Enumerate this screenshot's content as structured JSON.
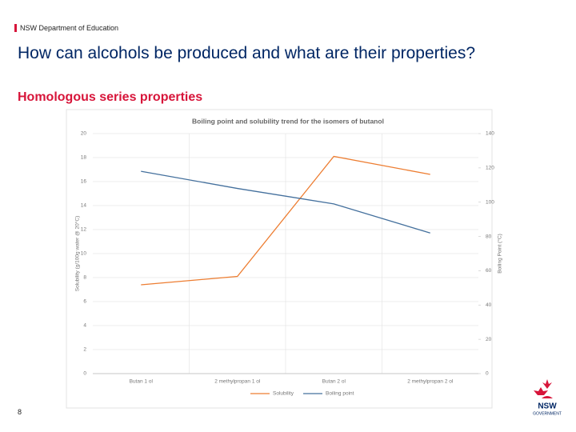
{
  "header": {
    "org": "NSW Department of Education",
    "title": "How can alcohols be produced and what are their properties?",
    "subtitle": "Homologous series properties"
  },
  "page_number": 8,
  "logo": {
    "name": "NSW",
    "sub": "GOVERNMENT"
  },
  "chart_data": {
    "type": "line",
    "title": "Boiling point and solubility trend for the isomers of butanol",
    "categories": [
      "Butan 1 ol",
      "2 methylpropan 1 ol",
      "Butan 2 ol",
      "2 methylpropan 2 ol"
    ],
    "y_label": "Solubility (g/100g water @ 20°C)",
    "y2_label": "Boiling Point (°C)",
    "series": [
      {
        "name": "Solubility",
        "color": "#ed7d31",
        "values": [
          7.4,
          8.1,
          18.1,
          16.6
        ]
      },
      {
        "name": "Boiling point",
        "color": "#44709d",
        "axis": "y2",
        "values": [
          118,
          108,
          99,
          82
        ]
      }
    ],
    "ylim": [
      0,
      20
    ],
    "yticks": [
      0,
      2,
      4,
      6,
      8,
      10,
      12,
      14,
      16,
      18,
      20
    ],
    "y2lim": [
      0,
      140
    ],
    "y2ticks": [
      0,
      20,
      40,
      60,
      80,
      100,
      120,
      140
    ],
    "grid": true,
    "legend": "bottom"
  }
}
